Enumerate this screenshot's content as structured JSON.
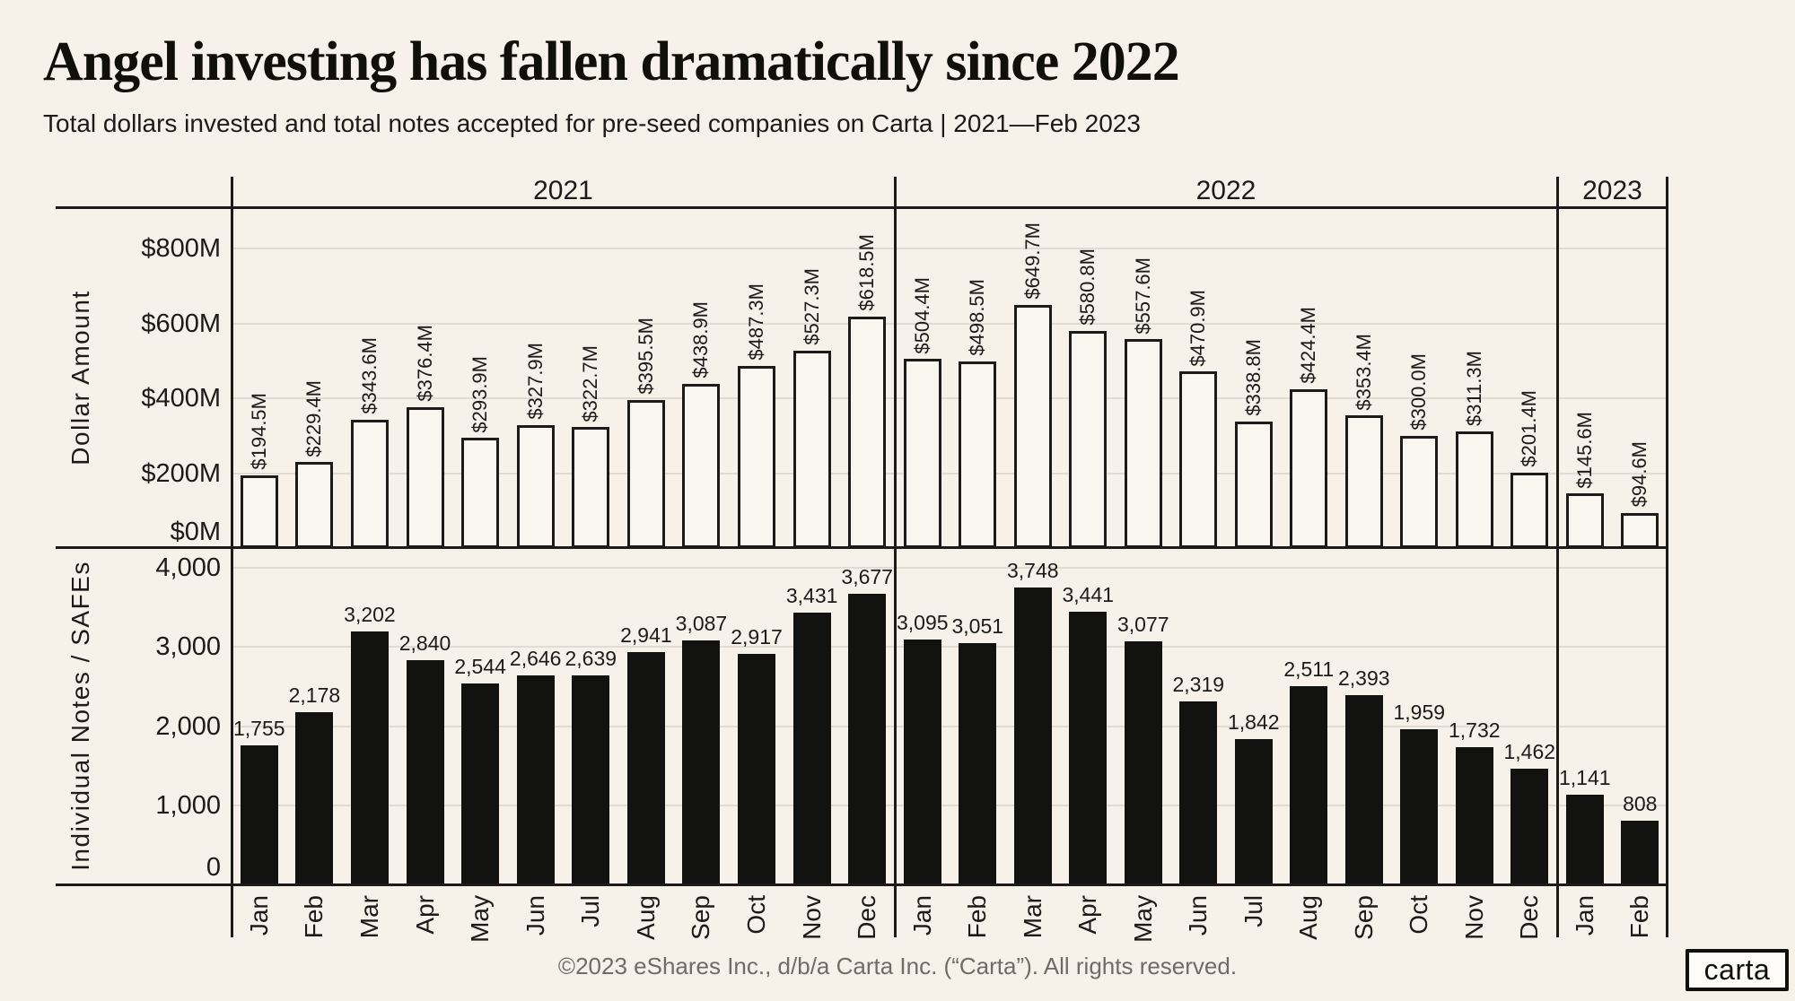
{
  "header": {
    "title": "Angel investing has fallen dramatically since 2022",
    "subtitle": "Total dollars invested and total notes accepted for pre-seed companies on Carta | 2021—Feb 2023"
  },
  "footer": {
    "copyright": "©2023 eShares Inc., d/b/a Carta Inc. (“Carta”). All rights reserved.",
    "logo_text": "carta"
  },
  "chart_data": {
    "type": "bar",
    "layout": "two vertically stacked panels sharing one month x-axis, grouped by year",
    "grid": true,
    "colors": {
      "background": "#f6f1e9",
      "outline_bar_fill": "#f9f6ef",
      "solid_bar_fill": "#121210",
      "line": "#1c1b19",
      "gridline": "#e0dcd4",
      "footer_text": "#6f6c66"
    },
    "months": [
      "Jan",
      "Feb",
      "Mar",
      "Apr",
      "May",
      "Jun",
      "Jul",
      "Aug",
      "Sep",
      "Oct",
      "Nov",
      "Dec",
      "Jan",
      "Feb",
      "Mar",
      "Apr",
      "May",
      "Jun",
      "Jul",
      "Aug",
      "Sep",
      "Oct",
      "Nov",
      "Dec",
      "Jan",
      "Feb"
    ],
    "year_groups": [
      {
        "label": "2021",
        "months": 12
      },
      {
        "label": "2022",
        "months": 12
      },
      {
        "label": "2023",
        "months": 2
      }
    ],
    "panels": [
      {
        "name": "dollar-amount",
        "ylabel": "Dollar Amount",
        "bar_style": "outline",
        "unit": "USD millions",
        "ylim": [
          0,
          900
        ],
        "ytick_values": [
          800,
          600,
          400,
          200,
          0
        ],
        "ytick_labels": [
          "$800M",
          "$600M",
          "$400M",
          "$200M",
          "$0M"
        ],
        "values": [
          194.5,
          229.4,
          343.6,
          376.4,
          293.9,
          327.9,
          322.7,
          395.5,
          438.9,
          487.3,
          527.3,
          618.5,
          504.4,
          498.5,
          649.7,
          580.8,
          557.6,
          470.9,
          338.8,
          424.4,
          353.4,
          300.0,
          311.3,
          201.4,
          145.6,
          94.6
        ],
        "bar_labels": [
          "$194.5M",
          "$229.4M",
          "$343.6M",
          "$376.4M",
          "$293.9M",
          "$327.9M",
          "$322.7M",
          "$395.5M",
          "$438.9M",
          "$487.3M",
          "$527.3M",
          "$618.5M",
          "$504.4M",
          "$498.5M",
          "$649.7M",
          "$580.8M",
          "$557.6M",
          "$470.9M",
          "$338.8M",
          "$424.4M",
          "$353.4M",
          "$300.0M",
          "$311.3M",
          "$201.4M",
          "$145.6M",
          "$94.6M"
        ]
      },
      {
        "name": "notes-safes",
        "ylabel": "Individual Notes / SAFEs",
        "bar_style": "solid",
        "unit": "count",
        "ylim": [
          0,
          4250
        ],
        "ytick_values": [
          4000,
          3000,
          2000,
          1000,
          0
        ],
        "ytick_labels": [
          "4,000",
          "3,000",
          "2,000",
          "1,000",
          "0"
        ],
        "values": [
          1755,
          2178,
          3202,
          2840,
          2544,
          2646,
          2639,
          2941,
          3087,
          2917,
          3431,
          3677,
          3095,
          3051,
          3748,
          3441,
          3077,
          2319,
          1842,
          2511,
          2393,
          1959,
          1732,
          1462,
          1141,
          808
        ],
        "bar_labels": [
          "1,755",
          "2,178",
          "3,202",
          "2,840",
          "2,544",
          "2,646",
          "2,639",
          "2,941",
          "3,087",
          "2,917",
          "3,431",
          "3,677",
          "3,095",
          "3,051",
          "3,748",
          "3,441",
          "3,077",
          "2,319",
          "1,842",
          "2,511",
          "2,393",
          "1,959",
          "1,732",
          "1,462",
          "1,141",
          "808"
        ]
      }
    ]
  }
}
